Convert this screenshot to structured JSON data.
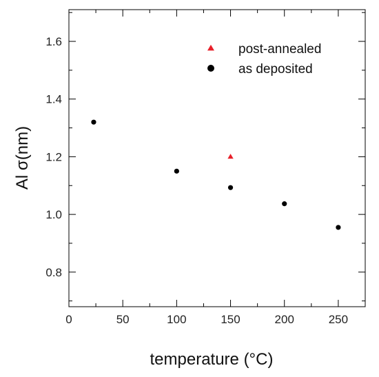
{
  "chart_data": {
    "type": "scatter",
    "xlabel": "temperature (°C)",
    "ylabel": "Al σ(nm)",
    "xlim": [
      0,
      275
    ],
    "ylim": [
      0.68,
      1.71
    ],
    "x_ticks": [
      0,
      50,
      100,
      150,
      200,
      250
    ],
    "y_ticks": [
      0.8,
      1.0,
      1.2,
      1.4,
      1.6
    ],
    "x_tick_labels": [
      "0",
      "50",
      "100",
      "150",
      "200",
      "250"
    ],
    "y_tick_labels": [
      "0.8",
      "1.0",
      "1.2",
      "1.4",
      "1.6"
    ],
    "grid": false,
    "legend_position": "top-right",
    "series": [
      {
        "name": "post-annealed",
        "marker": "triangle",
        "color": "#e8202a",
        "points": [
          {
            "x": 150,
            "y": 1.2
          }
        ]
      },
      {
        "name": "as deposited",
        "marker": "circle",
        "color": "#000000",
        "points": [
          {
            "x": 23,
            "y": 1.32
          },
          {
            "x": 100,
            "y": 1.15
          },
          {
            "x": 150,
            "y": 1.093
          },
          {
            "x": 200,
            "y": 1.037
          },
          {
            "x": 250,
            "y": 0.955
          }
        ]
      }
    ]
  }
}
